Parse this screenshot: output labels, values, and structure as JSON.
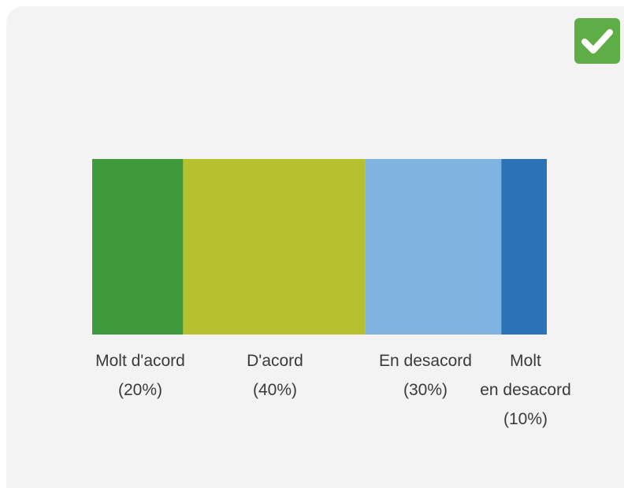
{
  "badge": {
    "icon": "checkmark-icon",
    "color": "#5fad46"
  },
  "chart_data": {
    "type": "bar",
    "orientation": "horizontal-stacked",
    "title": "",
    "xlabel": "",
    "ylabel": "",
    "xlim": [
      0,
      100
    ],
    "categories": [
      "Molt d'acord",
      "D'acord",
      "En desacord",
      "Molt en desacord"
    ],
    "values": [
      20,
      40,
      30,
      10
    ],
    "colors": [
      "#3e9a3a",
      "#b7c12f",
      "#7fb3e0",
      "#2c72b6"
    ],
    "data_labels": [
      [
        "Molt d'acord",
        "(20%)"
      ],
      [
        "D'acord",
        "(40%)"
      ],
      [
        "En desacord",
        "(30%)"
      ],
      [
        "Molt",
        "en desacord",
        "(10%)"
      ]
    ]
  }
}
